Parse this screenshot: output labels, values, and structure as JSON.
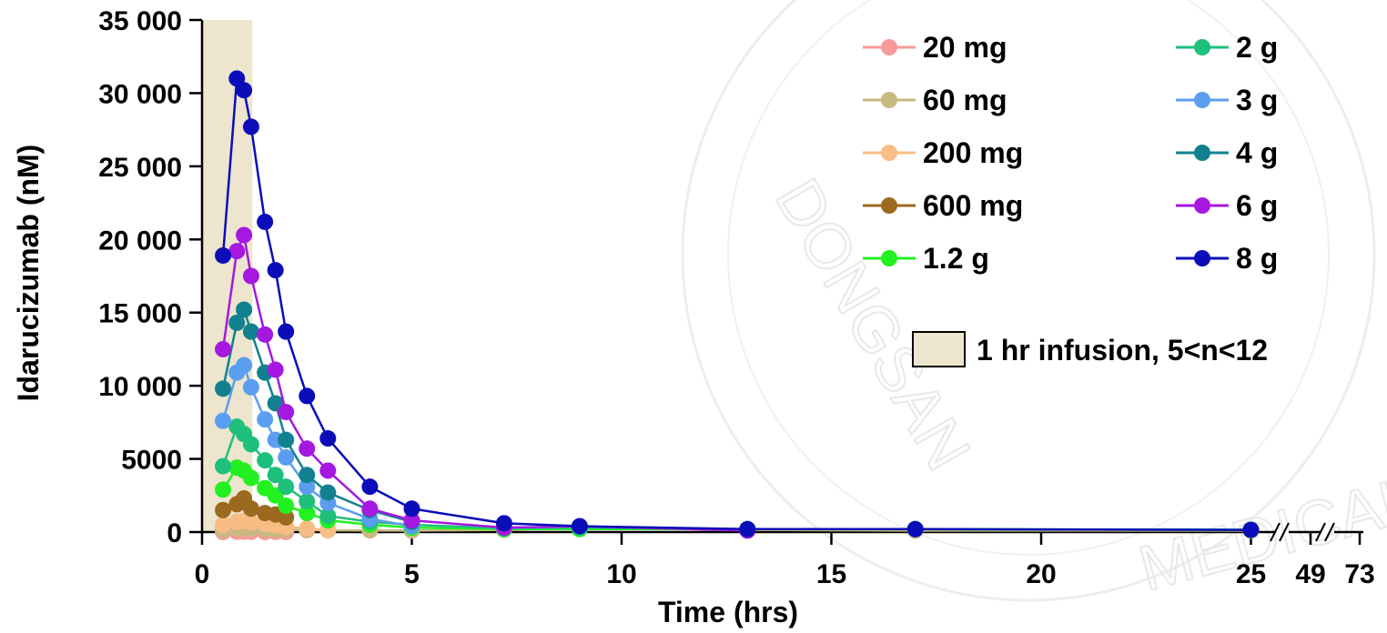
{
  "chart_data": {
    "type": "line",
    "title": "",
    "xlabel": "Time (hrs)",
    "ylabel": "Idarucizumab (nM)",
    "ylim": [
      0,
      35000
    ],
    "xlim": [
      0,
      30
    ],
    "y_ticks": [
      0,
      5000,
      10000,
      15000,
      20000,
      25000,
      30000,
      35000
    ],
    "y_tick_labels": [
      "0",
      "5000",
      "10 000",
      "15 000",
      "20 000",
      "25 000",
      "30 000",
      "35 000"
    ],
    "x_ticks": [
      0,
      5,
      10,
      15,
      20,
      25
    ],
    "x_tick_labels": [
      "0",
      "5",
      "10",
      "15",
      "20",
      "25"
    ],
    "x_break_labels": [
      "49",
      "73"
    ],
    "grid": false,
    "legend_position": "top-right",
    "infusion_shading": {
      "x_start": 0,
      "x_end": 1.2,
      "color": "#ede5cd",
      "label": "1 hr infusion, 5<n<12"
    },
    "series": [
      {
        "name": "20 mg",
        "color": "#f79a9a",
        "x": [
          0.5,
          0.83,
          1.0,
          1.17,
          1.5,
          1.75,
          2.0
        ],
        "y": [
          0,
          20,
          20,
          15,
          10,
          8,
          5
        ]
      },
      {
        "name": "60 mg",
        "color": "#c8b882",
        "x": [
          0.5,
          0.83,
          1.0,
          1.17,
          1.5,
          1.75,
          2.0,
          2.5,
          3.0,
          4.0,
          5.0,
          7.2,
          9.0,
          13.0,
          17.0,
          25.0
        ],
        "y": [
          150,
          250,
          280,
          220,
          200,
          180,
          150,
          130,
          120,
          110,
          100,
          150,
          300,
          150,
          100,
          100
        ]
      },
      {
        "name": "200 mg",
        "color": "#f8bd84",
        "x": [
          0.5,
          0.83,
          1.0,
          1.17,
          1.5,
          1.75,
          2.0,
          2.5,
          3.0
        ],
        "y": [
          500,
          700,
          750,
          650,
          550,
          450,
          350,
          250,
          150
        ]
      },
      {
        "name": "600 mg",
        "color": "#9b6a1e",
        "x": [
          0.5,
          0.83,
          1.0,
          1.17,
          1.5,
          1.75,
          2.0
        ],
        "y": [
          1500,
          1900,
          2300,
          1600,
          1300,
          1200,
          1000
        ]
      },
      {
        "name": "1.2 g",
        "color": "#22f020",
        "x": [
          0.5,
          0.83,
          1.0,
          1.17,
          1.5,
          1.75,
          2.0,
          2.5,
          3.0,
          4.0,
          5.0,
          7.2,
          9.0,
          13.0,
          17.0,
          25.0
        ],
        "y": [
          2900,
          4400,
          4200,
          3700,
          3000,
          2500,
          1800,
          1300,
          800,
          500,
          300,
          200,
          200,
          200,
          200,
          150
        ]
      },
      {
        "name": "2 g",
        "color": "#1fbf7c",
        "x": [
          0.5,
          0.83,
          1.0,
          1.17,
          1.5,
          1.75,
          2.0,
          2.5,
          3.0,
          4.0,
          5.0,
          7.2,
          9.0,
          13.0,
          17.0,
          25.0
        ],
        "y": [
          4500,
          7200,
          6700,
          6000,
          4900,
          3900,
          3100,
          2100,
          1100,
          700,
          500,
          250,
          300,
          200,
          200,
          150
        ]
      },
      {
        "name": "3 g",
        "color": "#5b9ef0",
        "x": [
          0.5,
          0.83,
          1.0,
          1.17,
          1.5,
          1.75,
          2.0,
          2.5,
          3.0,
          4.0,
          5.0
        ],
        "y": [
          7600,
          10900,
          11400,
          9900,
          7700,
          6300,
          5100,
          3100,
          2000,
          900,
          400
        ]
      },
      {
        "name": "4 g",
        "color": "#12818f",
        "x": [
          0.5,
          0.83,
          1.0,
          1.17,
          1.5,
          1.75,
          2.0,
          2.5,
          3.0,
          4.0,
          5.0
        ],
        "y": [
          9800,
          14300,
          15200,
          13700,
          10900,
          8800,
          6300,
          3900,
          2700,
          1500,
          700
        ]
      },
      {
        "name": "6 g",
        "color": "#a418e0",
        "x": [
          0.5,
          0.83,
          1.0,
          1.17,
          1.5,
          1.75,
          2.0,
          2.5,
          3.0,
          4.0,
          5.0,
          7.2,
          9.0,
          13.0
        ],
        "y": [
          12500,
          19200,
          20300,
          17500,
          13500,
          11100,
          8200,
          5700,
          4200,
          1600,
          800,
          300,
          400,
          100
        ]
      },
      {
        "name": "8 g",
        "color": "#0a0db8",
        "x": [
          0.5,
          0.83,
          1.0,
          1.17,
          1.5,
          1.75,
          2.0,
          2.5,
          3.0,
          4.0,
          5.0,
          7.2,
          9.0,
          13.0,
          17.0,
          25.0
        ],
        "y": [
          18900,
          31000,
          30200,
          27700,
          21200,
          17900,
          13700,
          9300,
          6400,
          3100,
          1600,
          600,
          400,
          200,
          200,
          150
        ]
      }
    ]
  }
}
